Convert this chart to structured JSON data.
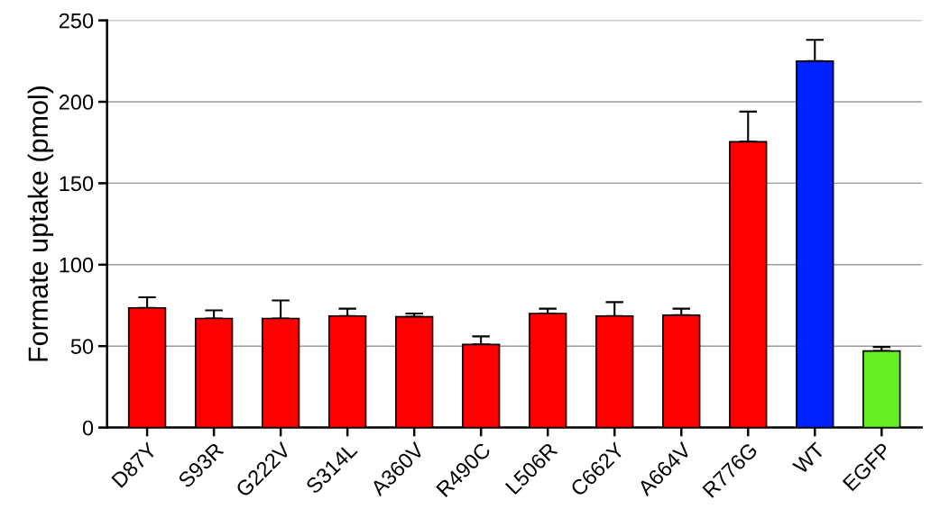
{
  "chart_data": {
    "type": "bar",
    "ylabel": "Formate uptake (pmol)",
    "categories": [
      "D87Y",
      "S93R",
      "G222V",
      "S314L",
      "A360V",
      "R490C",
      "L506R",
      "C662Y",
      "A664V",
      "R776G",
      "WT",
      "EGFP"
    ],
    "values": [
      73.5,
      67,
      67,
      68.5,
      68,
      51,
      70,
      68.5,
      69,
      175.5,
      225,
      47
    ],
    "errors": [
      [
        73.5,
        80
      ],
      [
        67,
        72
      ],
      [
        67,
        78
      ],
      [
        68.5,
        73
      ],
      [
        68,
        70
      ],
      [
        51,
        56
      ],
      [
        70,
        73
      ],
      [
        68.5,
        77
      ],
      [
        69,
        73
      ],
      [
        175.5,
        194
      ],
      [
        225,
        238
      ],
      [
        47,
        49.5
      ]
    ],
    "colors": [
      "#ff0000",
      "#ff0000",
      "#ff0000",
      "#ff0000",
      "#ff0000",
      "#ff0000",
      "#ff0000",
      "#ff0000",
      "#ff0000",
      "#ff0000",
      "#0022ff",
      "#66ee22"
    ],
    "ylim": [
      0,
      250
    ],
    "yticks": [
      0,
      50,
      100,
      150,
      200,
      250
    ],
    "grid": "y"
  }
}
